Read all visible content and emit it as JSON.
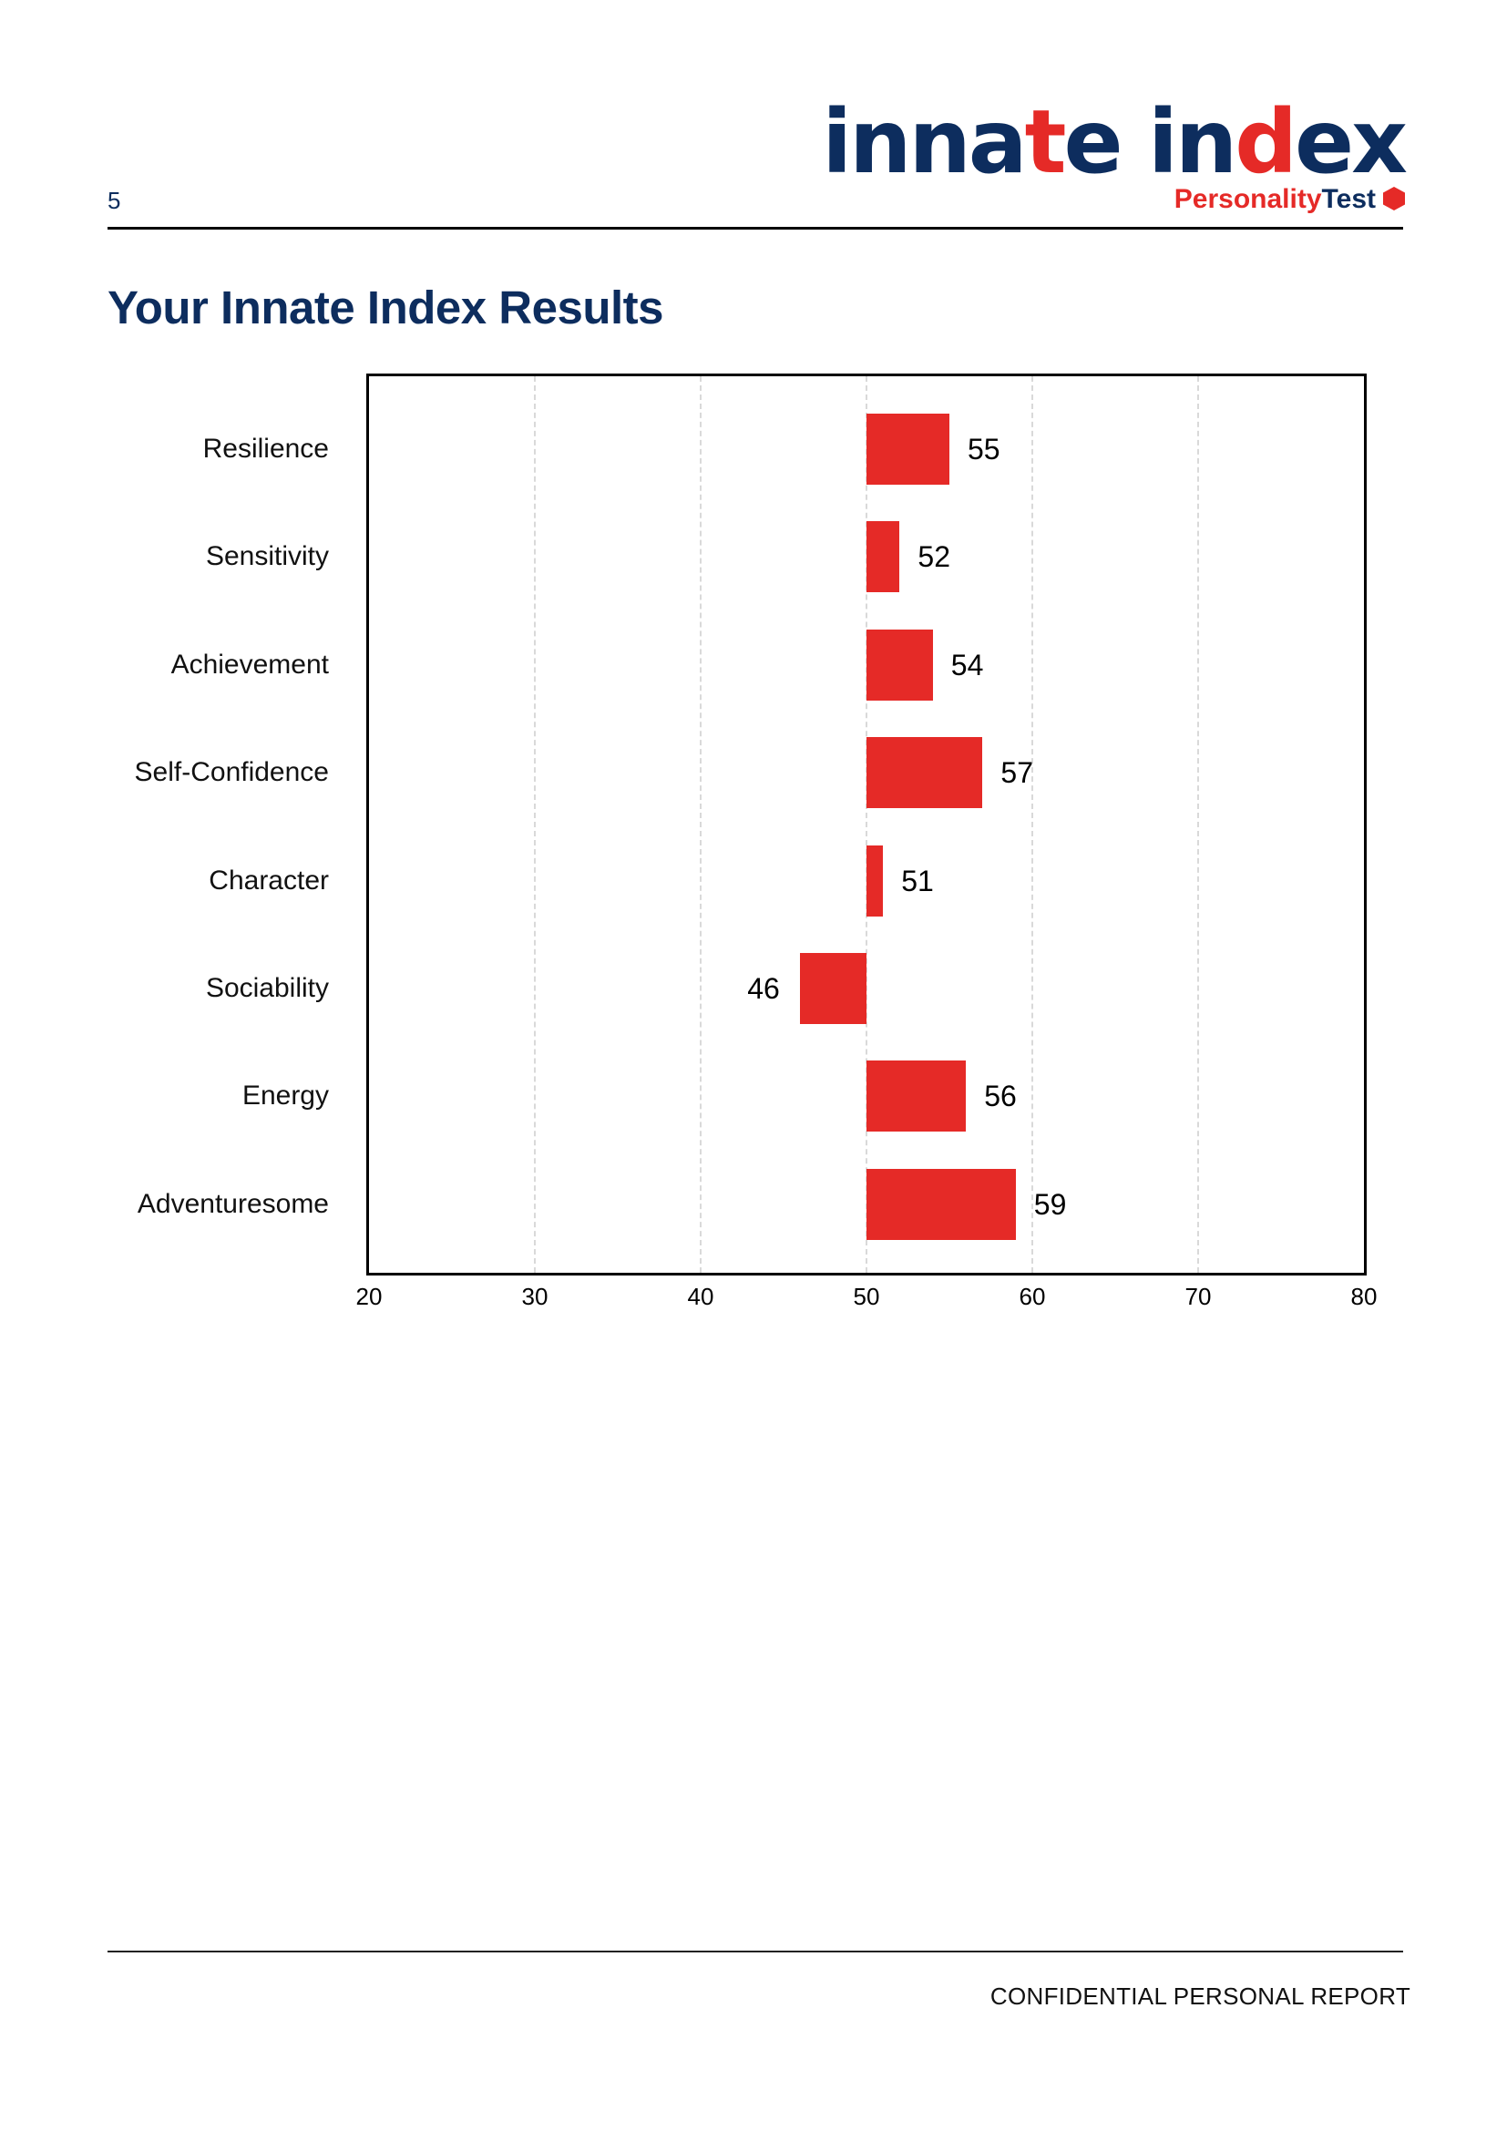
{
  "header": {
    "page_number": "5",
    "logo": {
      "word1_a": "innа",
      "word1_red": "t",
      "word1_b": "e",
      "word2_a": "in",
      "word2_red": "d",
      "word2_b": "ex",
      "sub_red": "Personality",
      "sub_blue": "Test",
      "icon": "hexagon-icon"
    }
  },
  "title": "Your Innate Index Results",
  "footer": {
    "text": "CONFIDENTIAL PERSONAL REPORT"
  },
  "colors": {
    "navy": "#0d2d5e",
    "red": "#e52a27",
    "grid": "#d9d9d9"
  },
  "chart_data": {
    "type": "bar",
    "orientation": "horizontal",
    "title": "",
    "xlabel": "",
    "ylabel": "",
    "baseline": 50,
    "xlim": [
      20,
      80
    ],
    "xticks": [
      "20",
      "30",
      "40",
      "50",
      "60",
      "70",
      "80"
    ],
    "grid": "vertical dashed",
    "categories": [
      "Resilience",
      "Sensitivity",
      "Achievement",
      "Self-Confidence",
      "Character",
      "Sociability",
      "Energy",
      "Adventuresome"
    ],
    "values": [
      55,
      52,
      54,
      57,
      51,
      46,
      56,
      59
    ],
    "labels": [
      "55",
      "52",
      "54",
      "57",
      "51",
      "46",
      "56",
      "59"
    ],
    "bar_color": "#e52a27"
  }
}
